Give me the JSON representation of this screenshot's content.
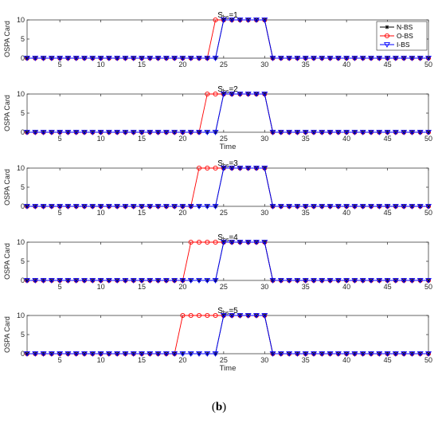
{
  "chart_data": [
    {
      "type": "line",
      "title": {
        "base": "S",
        "sub": "bs",
        "suffix": "=1"
      },
      "xlabel": "",
      "ylabel": "OSPA Card",
      "xlim": [
        1,
        50
      ],
      "ylim": [
        0,
        10
      ],
      "xticks": [
        5,
        10,
        15,
        20,
        25,
        30,
        35,
        40,
        45,
        50
      ],
      "yticks": [
        0,
        5,
        10
      ],
      "x": [
        1,
        2,
        3,
        4,
        5,
        6,
        7,
        8,
        9,
        10,
        11,
        12,
        13,
        14,
        15,
        16,
        17,
        18,
        19,
        20,
        21,
        22,
        23,
        24,
        25,
        26,
        27,
        28,
        29,
        30,
        31,
        32,
        33,
        34,
        35,
        36,
        37,
        38,
        39,
        40,
        41,
        42,
        43,
        44,
        45,
        46,
        47,
        48,
        49,
        50
      ],
      "series": [
        {
          "name": "N-BS",
          "color": "#000000",
          "marker": "star",
          "values": [
            0,
            0,
            0,
            0,
            0,
            0,
            0,
            0,
            0,
            0,
            0,
            0,
            0,
            0,
            0,
            0,
            0,
            0,
            0,
            0,
            0,
            0,
            0,
            0,
            10,
            10,
            10,
            10,
            10,
            10,
            0,
            0,
            0,
            0,
            0,
            0,
            0,
            0,
            0,
            0,
            0,
            0,
            0,
            0,
            0,
            0,
            0,
            0,
            0,
            0
          ]
        },
        {
          "name": "O-BS",
          "color": "#ff0000",
          "marker": "circle",
          "values": [
            0,
            0,
            0,
            0,
            0,
            0,
            0,
            0,
            0,
            0,
            0,
            0,
            0,
            0,
            0,
            0,
            0,
            0,
            0,
            0,
            0,
            0,
            0,
            10,
            10,
            10,
            10,
            10,
            10,
            10,
            0,
            0,
            0,
            0,
            0,
            0,
            0,
            0,
            0,
            0,
            0,
            0,
            0,
            0,
            0,
            0,
            0,
            0,
            0,
            0
          ]
        },
        {
          "name": "I-BS",
          "color": "#0000ff",
          "marker": "triangle-down",
          "values": [
            0,
            0,
            0,
            0,
            0,
            0,
            0,
            0,
            0,
            0,
            0,
            0,
            0,
            0,
            0,
            0,
            0,
            0,
            0,
            0,
            0,
            0,
            0,
            0,
            10,
            10,
            10,
            10,
            10,
            10,
            0,
            0,
            0,
            0,
            0,
            0,
            0,
            0,
            0,
            0,
            0,
            0,
            0,
            0,
            0,
            0,
            0,
            0,
            0,
            0
          ]
        }
      ],
      "legend": "top-right"
    },
    {
      "type": "line",
      "title": {
        "base": "S",
        "sub": "bs",
        "suffix": "=2"
      },
      "xlabel": "Time",
      "ylabel": "OSPA Card",
      "xlim": [
        1,
        50
      ],
      "ylim": [
        0,
        10
      ],
      "xticks": [
        5,
        10,
        15,
        20,
        25,
        30,
        35,
        40,
        45,
        50
      ],
      "yticks": [
        0,
        5,
        10
      ],
      "x": [
        1,
        2,
        3,
        4,
        5,
        6,
        7,
        8,
        9,
        10,
        11,
        12,
        13,
        14,
        15,
        16,
        17,
        18,
        19,
        20,
        21,
        22,
        23,
        24,
        25,
        26,
        27,
        28,
        29,
        30,
        31,
        32,
        33,
        34,
        35,
        36,
        37,
        38,
        39,
        40,
        41,
        42,
        43,
        44,
        45,
        46,
        47,
        48,
        49,
        50
      ],
      "series": [
        {
          "name": "N-BS",
          "color": "#000000",
          "marker": "star",
          "values": [
            0,
            0,
            0,
            0,
            0,
            0,
            0,
            0,
            0,
            0,
            0,
            0,
            0,
            0,
            0,
            0,
            0,
            0,
            0,
            0,
            0,
            0,
            0,
            0,
            10,
            10,
            10,
            10,
            10,
            10,
            0,
            0,
            0,
            0,
            0,
            0,
            0,
            0,
            0,
            0,
            0,
            0,
            0,
            0,
            0,
            0,
            0,
            0,
            0,
            0
          ]
        },
        {
          "name": "O-BS",
          "color": "#ff0000",
          "marker": "circle",
          "values": [
            0,
            0,
            0,
            0,
            0,
            0,
            0,
            0,
            0,
            0,
            0,
            0,
            0,
            0,
            0,
            0,
            0,
            0,
            0,
            0,
            0,
            0,
            10,
            10,
            10,
            10,
            10,
            10,
            10,
            10,
            0,
            0,
            0,
            0,
            0,
            0,
            0,
            0,
            0,
            0,
            0,
            0,
            0,
            0,
            0,
            0,
            0,
            0,
            0,
            0
          ]
        },
        {
          "name": "I-BS",
          "color": "#0000ff",
          "marker": "triangle-down",
          "values": [
            0,
            0,
            0,
            0,
            0,
            0,
            0,
            0,
            0,
            0,
            0,
            0,
            0,
            0,
            0,
            0,
            0,
            0,
            0,
            0,
            0,
            0,
            0,
            0,
            10,
            10,
            10,
            10,
            10,
            10,
            0,
            0,
            0,
            0,
            0,
            0,
            0,
            0,
            0,
            0,
            0,
            0,
            0,
            0,
            0,
            0,
            0,
            0,
            0,
            0
          ]
        }
      ]
    },
    {
      "type": "line",
      "title": {
        "base": "S",
        "sub": "bs",
        "suffix": "=3"
      },
      "xlabel": "",
      "ylabel": "OSPA Card",
      "xlim": [
        1,
        50
      ],
      "ylim": [
        0,
        10
      ],
      "xticks": [
        5,
        10,
        15,
        20,
        25,
        30,
        35,
        40,
        45,
        50
      ],
      "yticks": [
        0,
        5,
        10
      ],
      "x": [
        1,
        2,
        3,
        4,
        5,
        6,
        7,
        8,
        9,
        10,
        11,
        12,
        13,
        14,
        15,
        16,
        17,
        18,
        19,
        20,
        21,
        22,
        23,
        24,
        25,
        26,
        27,
        28,
        29,
        30,
        31,
        32,
        33,
        34,
        35,
        36,
        37,
        38,
        39,
        40,
        41,
        42,
        43,
        44,
        45,
        46,
        47,
        48,
        49,
        50
      ],
      "series": [
        {
          "name": "N-BS",
          "color": "#000000",
          "marker": "star",
          "values": [
            0,
            0,
            0,
            0,
            0,
            0,
            0,
            0,
            0,
            0,
            0,
            0,
            0,
            0,
            0,
            0,
            0,
            0,
            0,
            0,
            0,
            0,
            0,
            0,
            10,
            10,
            10,
            10,
            10,
            10,
            0,
            0,
            0,
            0,
            0,
            0,
            0,
            0,
            0,
            0,
            0,
            0,
            0,
            0,
            0,
            0,
            0,
            0,
            0,
            0
          ]
        },
        {
          "name": "O-BS",
          "color": "#ff0000",
          "marker": "circle",
          "values": [
            0,
            0,
            0,
            0,
            0,
            0,
            0,
            0,
            0,
            0,
            0,
            0,
            0,
            0,
            0,
            0,
            0,
            0,
            0,
            0,
            0,
            10,
            10,
            10,
            10,
            10,
            10,
            10,
            10,
            10,
            0,
            0,
            0,
            0,
            0,
            0,
            0,
            0,
            0,
            0,
            0,
            0,
            0,
            0,
            0,
            0,
            0,
            0,
            0,
            0
          ]
        },
        {
          "name": "I-BS",
          "color": "#0000ff",
          "marker": "triangle-down",
          "values": [
            0,
            0,
            0,
            0,
            0,
            0,
            0,
            0,
            0,
            0,
            0,
            0,
            0,
            0,
            0,
            0,
            0,
            0,
            0,
            0,
            0,
            0,
            0,
            0,
            10,
            10,
            10,
            10,
            10,
            10,
            0,
            0,
            0,
            0,
            0,
            0,
            0,
            0,
            0,
            0,
            0,
            0,
            0,
            0,
            0,
            0,
            0,
            0,
            0,
            0
          ]
        }
      ]
    },
    {
      "type": "line",
      "title": {
        "base": "S",
        "sub": "bs",
        "suffix": "=4"
      },
      "xlabel": "",
      "ylabel": "OSPA Card",
      "xlim": [
        1,
        50
      ],
      "ylim": [
        0,
        10
      ],
      "xticks": [
        5,
        10,
        15,
        20,
        25,
        30,
        35,
        40,
        45,
        50
      ],
      "yticks": [
        0,
        5,
        10
      ],
      "x": [
        1,
        2,
        3,
        4,
        5,
        6,
        7,
        8,
        9,
        10,
        11,
        12,
        13,
        14,
        15,
        16,
        17,
        18,
        19,
        20,
        21,
        22,
        23,
        24,
        25,
        26,
        27,
        28,
        29,
        30,
        31,
        32,
        33,
        34,
        35,
        36,
        37,
        38,
        39,
        40,
        41,
        42,
        43,
        44,
        45,
        46,
        47,
        48,
        49,
        50
      ],
      "series": [
        {
          "name": "N-BS",
          "color": "#000000",
          "marker": "star",
          "values": [
            0,
            0,
            0,
            0,
            0,
            0,
            0,
            0,
            0,
            0,
            0,
            0,
            0,
            0,
            0,
            0,
            0,
            0,
            0,
            0,
            0,
            0,
            0,
            0,
            10,
            10,
            10,
            10,
            10,
            10,
            0,
            0,
            0,
            0,
            0,
            0,
            0,
            0,
            0,
            0,
            0,
            0,
            0,
            0,
            0,
            0,
            0,
            0,
            0,
            0
          ]
        },
        {
          "name": "O-BS",
          "color": "#ff0000",
          "marker": "circle",
          "values": [
            0,
            0,
            0,
            0,
            0,
            0,
            0,
            0,
            0,
            0,
            0,
            0,
            0,
            0,
            0,
            0,
            0,
            0,
            0,
            0,
            10,
            10,
            10,
            10,
            10,
            10,
            10,
            10,
            10,
            10,
            0,
            0,
            0,
            0,
            0,
            0,
            0,
            0,
            0,
            0,
            0,
            0,
            0,
            0,
            0,
            0,
            0,
            0,
            0,
            0
          ]
        },
        {
          "name": "I-BS",
          "color": "#0000ff",
          "marker": "triangle-down",
          "values": [
            0,
            0,
            0,
            0,
            0,
            0,
            0,
            0,
            0,
            0,
            0,
            0,
            0,
            0,
            0,
            0,
            0,
            0,
            0,
            0,
            0,
            0,
            0,
            0,
            10,
            10,
            10,
            10,
            10,
            10,
            0,
            0,
            0,
            0,
            0,
            0,
            0,
            0,
            0,
            0,
            0,
            0,
            0,
            0,
            0,
            0,
            0,
            0,
            0,
            0
          ]
        }
      ]
    },
    {
      "type": "line",
      "title": {
        "base": "S",
        "sub": "bs",
        "suffix": "=5"
      },
      "xlabel": "Time",
      "ylabel": "OSPA Card",
      "xlim": [
        1,
        50
      ],
      "ylim": [
        0,
        10
      ],
      "xticks": [
        5,
        10,
        15,
        20,
        25,
        30,
        35,
        40,
        45,
        50
      ],
      "yticks": [
        0,
        5,
        10
      ],
      "x": [
        1,
        2,
        3,
        4,
        5,
        6,
        7,
        8,
        9,
        10,
        11,
        12,
        13,
        14,
        15,
        16,
        17,
        18,
        19,
        20,
        21,
        22,
        23,
        24,
        25,
        26,
        27,
        28,
        29,
        30,
        31,
        32,
        33,
        34,
        35,
        36,
        37,
        38,
        39,
        40,
        41,
        42,
        43,
        44,
        45,
        46,
        47,
        48,
        49,
        50
      ],
      "series": [
        {
          "name": "N-BS",
          "color": "#000000",
          "marker": "star",
          "values": [
            0,
            0,
            0,
            0,
            0,
            0,
            0,
            0,
            0,
            0,
            0,
            0,
            0,
            0,
            0,
            0,
            0,
            0,
            0,
            0,
            0,
            0,
            0,
            0,
            10,
            10,
            10,
            10,
            10,
            10,
            0,
            0,
            0,
            0,
            0,
            0,
            0,
            0,
            0,
            0,
            0,
            0,
            0,
            0,
            0,
            0,
            0,
            0,
            0,
            0
          ]
        },
        {
          "name": "O-BS",
          "color": "#ff0000",
          "marker": "circle",
          "values": [
            0,
            0,
            0,
            0,
            0,
            0,
            0,
            0,
            0,
            0,
            0,
            0,
            0,
            0,
            0,
            0,
            0,
            0,
            0,
            10,
            10,
            10,
            10,
            10,
            10,
            10,
            10,
            10,
            10,
            10,
            0,
            0,
            0,
            0,
            0,
            0,
            0,
            0,
            0,
            0,
            0,
            0,
            0,
            0,
            0,
            0,
            0,
            0,
            0,
            0
          ]
        },
        {
          "name": "I-BS",
          "color": "#0000ff",
          "marker": "triangle-down",
          "values": [
            0,
            0,
            0,
            0,
            0,
            0,
            0,
            0,
            0,
            0,
            0,
            0,
            0,
            0,
            0,
            0,
            0,
            0,
            0,
            0,
            0,
            0,
            0,
            0,
            10,
            10,
            10,
            10,
            10,
            10,
            0,
            0,
            0,
            0,
            0,
            0,
            0,
            0,
            0,
            0,
            0,
            0,
            0,
            0,
            0,
            0,
            0,
            0,
            0,
            0
          ]
        }
      ]
    }
  ],
  "caption": {
    "open": "(",
    "label": "b",
    "close": ")"
  }
}
